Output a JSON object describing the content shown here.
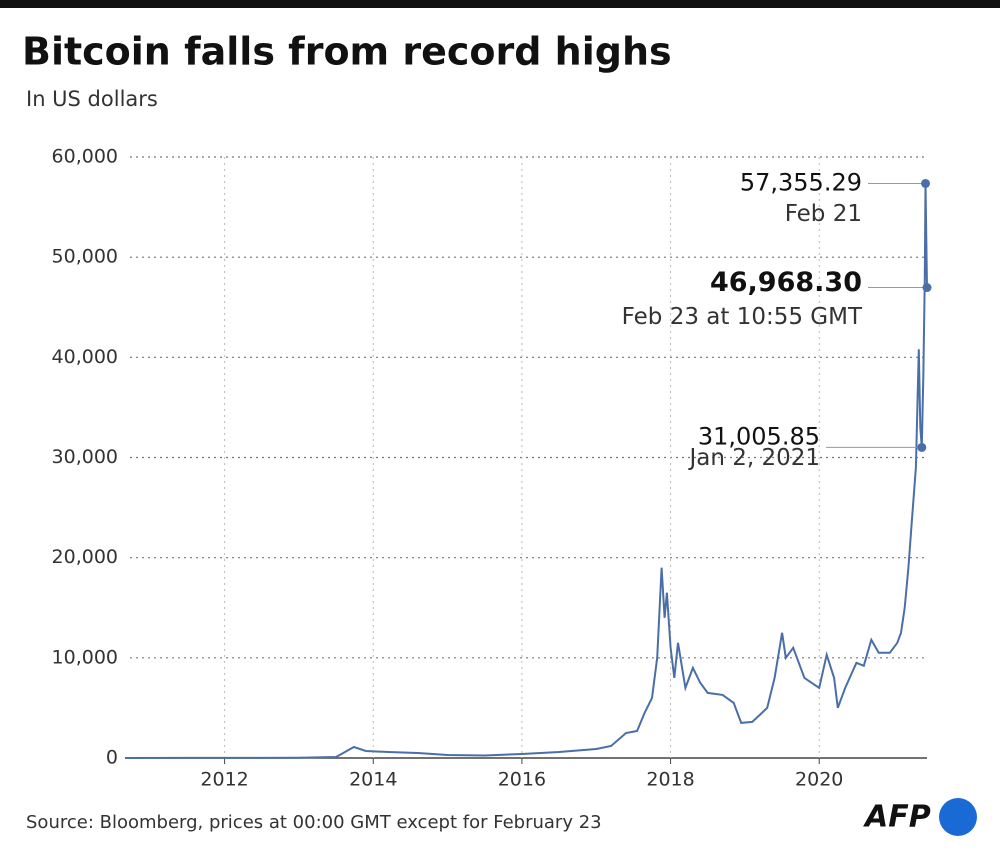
{
  "chart_data": {
    "type": "line",
    "title": "Bitcoin falls from record highs",
    "subtitle": "In US dollars",
    "source": "Source: Bloomberg, prices at 00:00 GMT except for February 23",
    "logo": "AFP",
    "color": "#4a6fa8",
    "x": [
      2010.66,
      2011.5,
      2012.5,
      2013.0,
      2013.5,
      2013.74,
      2013.9,
      2014.2,
      2014.6,
      2015.0,
      2015.5,
      2016.0,
      2016.5,
      2017.0,
      2017.2,
      2017.4,
      2017.55,
      2017.65,
      2017.75,
      2017.82,
      2017.88,
      2017.92,
      2017.95,
      2018.0,
      2018.05,
      2018.1,
      2018.2,
      2018.3,
      2018.4,
      2018.5,
      2018.7,
      2018.85,
      2018.95,
      2019.1,
      2019.3,
      2019.4,
      2019.5,
      2019.55,
      2019.65,
      2019.8,
      2019.9,
      2020.0,
      2020.1,
      2020.2,
      2020.25,
      2020.35,
      2020.5,
      2020.6,
      2020.7,
      2020.8,
      2020.95,
      2021.05,
      2021.1,
      2021.15,
      2021.2,
      2021.25,
      2021.3,
      2021.34,
      2021.36,
      2021.38,
      2021.4,
      2021.42,
      2021.43,
      2021.45
    ],
    "values": [
      0,
      10,
      10,
      15,
      100,
      1100,
      700,
      600,
      500,
      300,
      250,
      400,
      600,
      900,
      1200,
      2500,
      2700,
      4500,
      6000,
      10000,
      19000,
      14000,
      16500,
      11000,
      8000,
      11500,
      7000,
      9000,
      7500,
      6500,
      6300,
      5500,
      3500,
      3600,
      5000,
      8000,
      12500,
      10000,
      11000,
      8000,
      7500,
      7000,
      10300,
      8000,
      5000,
      7000,
      9500,
      9200,
      11800,
      10500,
      10500,
      11500,
      12500,
      15000,
      19000,
      24000,
      29000,
      40800,
      33000,
      31005.85,
      38000,
      48000,
      57355.29,
      46968.3
    ],
    "xlim": [
      2010.66,
      2021.45
    ],
    "xticks": [
      2012,
      2014,
      2016,
      2018,
      2020
    ],
    "ylim": [
      0,
      60000
    ],
    "yticks": [
      0,
      {
        "value": 10000,
        "label": "10,000"
      },
      {
        "value": 20000,
        "label": "20,000"
      },
      {
        "value": 30000,
        "label": "30,000"
      },
      {
        "value": 40000,
        "label": "40,000"
      },
      {
        "value": 50000,
        "label": "50,000"
      },
      {
        "value": 60000,
        "label": "60,000"
      }
    ],
    "grid": true,
    "annotations": [
      {
        "x": 2021.43,
        "value": 57355.29,
        "label": "57,355.29",
        "date": "Feb 21"
      },
      {
        "x": 2021.45,
        "value": 46968.3,
        "label": "46,968.30",
        "date": "Feb 23 at 10:55 GMT"
      },
      {
        "x": 2021.38,
        "value": 31005.85,
        "label": "31,005.85",
        "date": "Jan 2, 2021"
      }
    ]
  }
}
